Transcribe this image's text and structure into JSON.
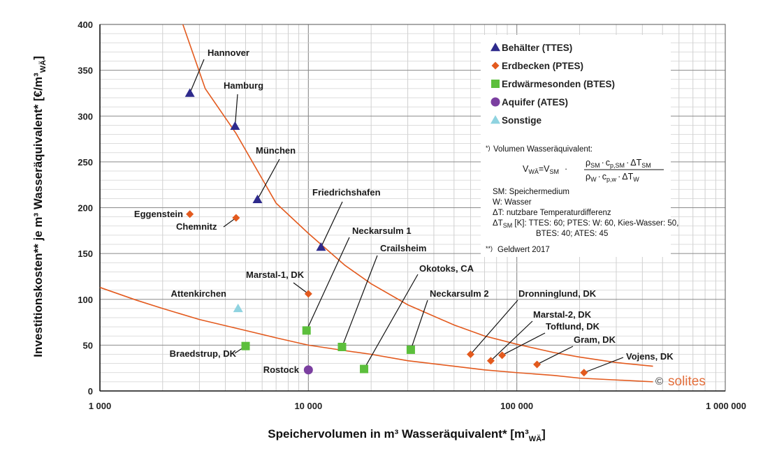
{
  "chart_data": {
    "type": "scatter",
    "x_scale": "log",
    "xlim": [
      1000,
      1000000
    ],
    "ylim": [
      0,
      400
    ],
    "x_ticks": [
      {
        "value": 1000,
        "label": "1 000"
      },
      {
        "value": 10000,
        "label": "10 000"
      },
      {
        "value": 100000,
        "label": "100 000"
      },
      {
        "value": 1000000,
        "label": "1 000 000"
      }
    ],
    "y_ticks": [
      {
        "value": 0,
        "label": "0"
      },
      {
        "value": 50,
        "label": "50"
      },
      {
        "value": 100,
        "label": "100"
      },
      {
        "value": 150,
        "label": "150"
      },
      {
        "value": 200,
        "label": "200"
      },
      {
        "value": 250,
        "label": "250"
      },
      {
        "value": 300,
        "label": "300"
      },
      {
        "value": 350,
        "label": "350"
      },
      {
        "value": 400,
        "label": "400"
      }
    ],
    "xlabel": "Speichervolumen in m³ Wasseräquivalent* [m³",
    "xlabel_sub": "WÄ",
    "xlabel_end": "]",
    "ylabel": "Investitionskosten** je m³ Wasseräquivalent* [€/m³",
    "ylabel_sub": "WÄ",
    "ylabel_end": "]",
    "grid": true,
    "legend_position": "top-right",
    "series": [
      {
        "name": "Behälter (TTES)",
        "marker": "triangle",
        "color": "#2e2a8c",
        "points": [
          {
            "x": 2700,
            "y": 325,
            "label": "Hannover"
          },
          {
            "x": 4450,
            "y": 289,
            "label": "Hamburg"
          },
          {
            "x": 5700,
            "y": 209,
            "label": "München"
          },
          {
            "x": 11500,
            "y": 157,
            "label": "Friedrichshafen"
          }
        ]
      },
      {
        "name": "Erdbecken (PTES)",
        "marker": "diamond",
        "color": "#e35a1e",
        "points": [
          {
            "x": 2700,
            "y": 193,
            "label": "Eggenstein"
          },
          {
            "x": 4500,
            "y": 189,
            "label": "Chemnitz"
          },
          {
            "x": 10000,
            "y": 106,
            "label": "Marstal-1, DK"
          },
          {
            "x": 60000,
            "y": 40,
            "label": "Dronninglund, DK"
          },
          {
            "x": 75000,
            "y": 33,
            "label": "Marstal-2, DK"
          },
          {
            "x": 85000,
            "y": 39,
            "label": "Toftlund, DK"
          },
          {
            "x": 125000,
            "y": 29,
            "label": "Gram, DK"
          },
          {
            "x": 210000,
            "y": 20,
            "label": "Vojens, DK"
          }
        ]
      },
      {
        "name": "Erdwärmesonden (BTES)",
        "marker": "square",
        "color": "#5cbf3c",
        "points": [
          {
            "x": 5000,
            "y": 49,
            "label": "Braedstrup, DK"
          },
          {
            "x": 9800,
            "y": 66,
            "label": "Neckarsulm 1"
          },
          {
            "x": 14500,
            "y": 48,
            "label": "Crailsheim"
          },
          {
            "x": 18500,
            "y": 24,
            "label": "Okotoks, CA"
          },
          {
            "x": 31000,
            "y": 45,
            "label": "Neckarsulm 2"
          }
        ]
      },
      {
        "name": "Aquifer (ATES)",
        "marker": "circle",
        "color": "#7b3fa0",
        "points": [
          {
            "x": 10000,
            "y": 23,
            "label": "Rostock"
          }
        ]
      },
      {
        "name": "Sonstige",
        "marker": "triangle",
        "color": "#8fd3e0",
        "points": [
          {
            "x": 4600,
            "y": 90,
            "label": "Attenkirchen"
          }
        ]
      }
    ],
    "trend_lines": [
      {
        "color": "#e35a1e",
        "points": [
          [
            2500,
            400
          ],
          [
            3200,
            330
          ],
          [
            4500,
            281
          ],
          [
            7000,
            205
          ],
          [
            10000,
            172
          ],
          [
            15000,
            137
          ],
          [
            20000,
            117
          ],
          [
            30000,
            94
          ],
          [
            50000,
            72
          ],
          [
            70000,
            60
          ],
          [
            100000,
            51
          ],
          [
            150000,
            42
          ],
          [
            200000,
            37
          ],
          [
            300000,
            31
          ],
          [
            450000,
            27
          ]
        ]
      },
      {
        "color": "#e35a1e",
        "points": [
          [
            1000,
            113
          ],
          [
            1500,
            99
          ],
          [
            2000,
            90
          ],
          [
            3000,
            78
          ],
          [
            5000,
            66
          ],
          [
            7000,
            58
          ],
          [
            10000,
            50
          ],
          [
            15000,
            44
          ],
          [
            20000,
            40
          ],
          [
            30000,
            33
          ],
          [
            50000,
            27
          ],
          [
            70000,
            23
          ],
          [
            100000,
            20
          ],
          [
            150000,
            17
          ],
          [
            200000,
            14
          ],
          [
            300000,
            12
          ],
          [
            450000,
            10
          ]
        ]
      }
    ]
  },
  "notes": {
    "footnote_marker": "*)",
    "footnote_title": "Volumen Wasseräquivalent:",
    "formula": {
      "lhs": "V",
      "lhs_sub": "WÄ",
      "equals": "=V",
      "equals_sub": "SM",
      "dot": "·",
      "num_rho": "ρ",
      "num_rho_sub": "SM",
      "num_dot1": "·",
      "num_c": "c",
      "num_c_sub": "p,SM",
      "num_dot2": "·",
      "num_dt": "ΔT",
      "num_dt_sub": "SM",
      "den_rho": "ρ",
      "den_rho_sub": "W",
      "den_dot1": "·",
      "den_c": "c",
      "den_c_sub": "p,w",
      "den_dot2": "·",
      "den_dt": "ΔT",
      "den_dt_sub": "W"
    },
    "def_sm": "SM: Speichermedium",
    "def_w": "W:   Wasser",
    "def_dt": "ΔT:  nutzbare Temperaturdifferenz",
    "def_dtsm_a": "ΔT",
    "def_dtsm_sub": "SM",
    "def_dtsm_b": " [K]: TTES: 60; PTES: W: 60, Kies-Wasser: 50,",
    "def_dtsm_line2": "BTES: 40; ATES: 45",
    "money_marker": "**)",
    "money_text": "Geldwert 2017"
  },
  "logo": {
    "copyright": "©",
    "text": "solites"
  }
}
